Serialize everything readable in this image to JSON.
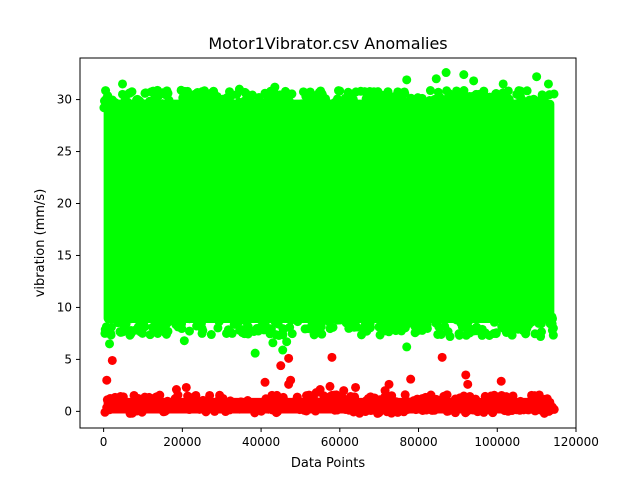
{
  "chart_data": {
    "type": "scatter",
    "title": "Motor1Vibrator.csv Anomalies",
    "xlabel": "Data Points",
    "ylabel": "vibration (mm/s)",
    "xlim": [
      -6000,
      120000
    ],
    "ylim": [
      -1.6,
      34.0
    ],
    "xticks": [
      0,
      20000,
      40000,
      60000,
      80000,
      100000,
      120000
    ],
    "xtick_labels": [
      "0",
      "20000",
      "40000",
      "60000",
      "80000",
      "100000",
      "120000"
    ],
    "yticks": [
      0,
      5,
      10,
      15,
      20,
      25,
      30
    ],
    "ytick_labels": [
      "0",
      "5",
      "10",
      "15",
      "20",
      "25",
      "30"
    ],
    "grid": false,
    "legend": "none",
    "series": [
      {
        "color": "#00ff00",
        "band": {
          "x": [
            0,
            114500
          ],
          "y": [
            8.5,
            30.0
          ]
        },
        "points": [
          {
            "x": 4800,
            "y": 31.5
          },
          {
            "x": 34500,
            "y": 31.0
          },
          {
            "x": 43500,
            "y": 31.2
          },
          {
            "x": 77000,
            "y": 31.9
          },
          {
            "x": 84500,
            "y": 32.0
          },
          {
            "x": 87000,
            "y": 32.6
          },
          {
            "x": 91500,
            "y": 32.4
          },
          {
            "x": 94000,
            "y": 31.8
          },
          {
            "x": 101500,
            "y": 31.5
          },
          {
            "x": 110000,
            "y": 32.2
          },
          {
            "x": 113000,
            "y": 31.5
          },
          {
            "x": 1500,
            "y": 6.5
          },
          {
            "x": 1800,
            "y": 7.5
          },
          {
            "x": 8000,
            "y": 7.8
          },
          {
            "x": 20500,
            "y": 6.8
          },
          {
            "x": 25000,
            "y": 7.5
          },
          {
            "x": 38500,
            "y": 5.6
          },
          {
            "x": 43000,
            "y": 6.6
          },
          {
            "x": 45500,
            "y": 5.9
          },
          {
            "x": 46500,
            "y": 6.7
          },
          {
            "x": 55000,
            "y": 7.6
          },
          {
            "x": 77000,
            "y": 6.2
          },
          {
            "x": 88000,
            "y": 7.2
          },
          {
            "x": 98000,
            "y": 7.3
          },
          {
            "x": 111000,
            "y": 7.2
          },
          {
            "x": 114000,
            "y": 7.8
          }
        ]
      },
      {
        "color": "#ff0000",
        "band": {
          "x": [
            0,
            114500
          ],
          "y": [
            -0.2,
            1.3
          ]
        },
        "points": [
          {
            "x": 800,
            "y": 3.0
          },
          {
            "x": 2200,
            "y": 4.9
          },
          {
            "x": 18500,
            "y": 2.1
          },
          {
            "x": 21000,
            "y": 2.3
          },
          {
            "x": 41000,
            "y": 2.8
          },
          {
            "x": 45000,
            "y": 4.4
          },
          {
            "x": 47000,
            "y": 5.1
          },
          {
            "x": 47500,
            "y": 3.0
          },
          {
            "x": 47000,
            "y": 2.6
          },
          {
            "x": 54000,
            "y": 1.8
          },
          {
            "x": 55000,
            "y": 2.1
          },
          {
            "x": 57500,
            "y": 2.4
          },
          {
            "x": 58000,
            "y": 5.2
          },
          {
            "x": 61000,
            "y": 2.0
          },
          {
            "x": 64000,
            "y": 2.3
          },
          {
            "x": 71500,
            "y": 2.0
          },
          {
            "x": 72500,
            "y": 2.6
          },
          {
            "x": 78000,
            "y": 3.1
          },
          {
            "x": 86000,
            "y": 5.2
          },
          {
            "x": 92000,
            "y": 3.5
          },
          {
            "x": 92500,
            "y": 2.6
          },
          {
            "x": 101000,
            "y": 2.9
          },
          {
            "x": 101000,
            "y": 1.1
          },
          {
            "x": 5000,
            "y": 1.4
          }
        ]
      }
    ]
  }
}
